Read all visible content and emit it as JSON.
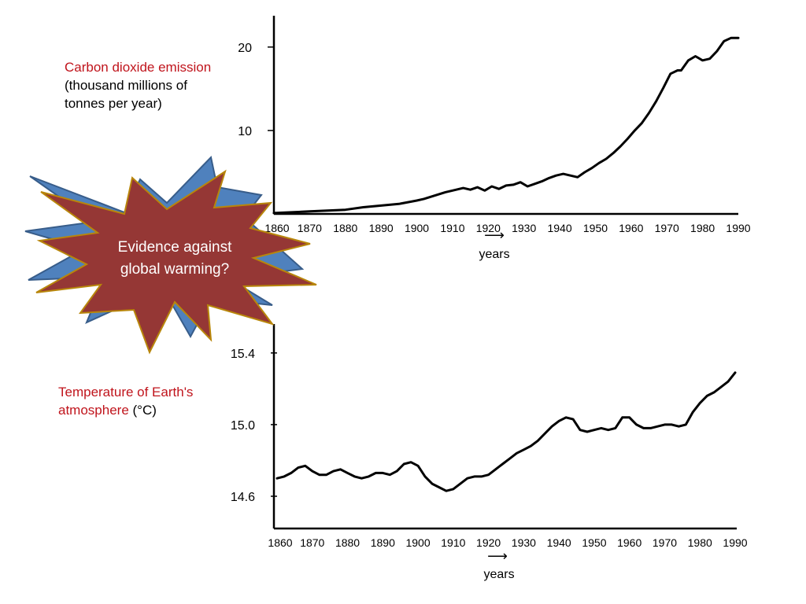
{
  "colors": {
    "label_red": "#c0141c",
    "line": "#000000",
    "burst_back_fill": "#4f81bd",
    "burst_back_stroke": "#385d8a",
    "burst_front_fill": "#953735",
    "burst_front_stroke": "#b8860b",
    "burst_text": "#ffffff"
  },
  "callout": {
    "shape": "explosion-burst",
    "line1": "Evidence against",
    "line2": "global warming?"
  },
  "chart_data": [
    {
      "type": "line",
      "title": "",
      "label_red": "Carbon dioxide emission",
      "label_black_1": "(thousand millions of",
      "label_black_2": "tonnes per year)",
      "xlabel": "years",
      "xlabel_arrow": "⟶",
      "xlim": [
        1860,
        1990
      ],
      "ylim": [
        0,
        23
      ],
      "x_ticks": [
        "1860",
        "1870",
        "1880",
        "1890",
        "1900",
        "1910",
        "1920",
        "1930",
        "1940",
        "1950",
        "1960",
        "1970",
        "1980",
        "1990"
      ],
      "y_ticks": [
        {
          "value": 10,
          "label": "10"
        },
        {
          "value": 20,
          "label": "20"
        }
      ],
      "grid": false,
      "series": [
        {
          "x": [
            1860,
            1865,
            1870,
            1875,
            1880,
            1885,
            1890,
            1895,
            1900,
            1902,
            1905,
            1908,
            1910,
            1913,
            1915,
            1917,
            1919,
            1921,
            1923,
            1925,
            1927,
            1929,
            1931,
            1933,
            1935,
            1937,
            1939,
            1941,
            1943,
            1945,
            1947,
            1949,
            1951,
            1953,
            1955,
            1957,
            1959,
            1961,
            1963,
            1965,
            1967,
            1969,
            1971,
            1973,
            1974,
            1976,
            1978,
            1980,
            1982,
            1984,
            1986,
            1988,
            1990
          ],
          "y": [
            0.1,
            0.2,
            0.3,
            0.4,
            0.5,
            0.8,
            1.0,
            1.2,
            1.6,
            1.8,
            2.2,
            2.6,
            2.8,
            3.1,
            2.9,
            3.2,
            2.8,
            3.3,
            3.0,
            3.4,
            3.5,
            3.8,
            3.3,
            3.6,
            3.9,
            4.3,
            4.6,
            4.8,
            4.6,
            4.4,
            5.0,
            5.5,
            6.1,
            6.6,
            7.3,
            8.1,
            9.0,
            10.0,
            10.9,
            12.1,
            13.5,
            15.1,
            16.8,
            17.2,
            17.2,
            18.4,
            18.9,
            18.4,
            18.6,
            19.5,
            20.7,
            21.1,
            21.1
          ]
        }
      ]
    },
    {
      "type": "line",
      "title": "",
      "label_red": "Temperature of Earth's",
      "label_red_2": "atmosphere",
      "label_black_unit": "(°C)",
      "xlabel": "years",
      "xlabel_arrow": "⟶",
      "xlim": [
        1860,
        1990
      ],
      "ylim": [
        14.42,
        15.5
      ],
      "x_ticks": [
        "1860",
        "1870",
        "1880",
        "1890",
        "1900",
        "1910",
        "1920",
        "1930",
        "1940",
        "1950",
        "1960",
        "1970",
        "1980",
        "1990"
      ],
      "y_ticks": [
        {
          "value": 14.6,
          "label": "14.6"
        },
        {
          "value": 15.0,
          "label": "15.0"
        },
        {
          "value": 15.4,
          "label": "15.4"
        }
      ],
      "grid": false,
      "series": [
        {
          "x": [
            1860,
            1862,
            1864,
            1866,
            1868,
            1870,
            1872,
            1874,
            1876,
            1878,
            1880,
            1882,
            1884,
            1886,
            1888,
            1890,
            1892,
            1894,
            1896,
            1898,
            1900,
            1902,
            1904,
            1906,
            1908,
            1910,
            1912,
            1914,
            1916,
            1918,
            1920,
            1922,
            1924,
            1926,
            1928,
            1930,
            1932,
            1934,
            1936,
            1938,
            1940,
            1942,
            1944,
            1946,
            1948,
            1950,
            1952,
            1954,
            1956,
            1958,
            1960,
            1962,
            1964,
            1966,
            1968,
            1970,
            1972,
            1974,
            1976,
            1978,
            1980,
            1982,
            1984,
            1986,
            1988,
            1990
          ],
          "y": [
            14.7,
            14.71,
            14.73,
            14.76,
            14.77,
            14.74,
            14.72,
            14.72,
            14.74,
            14.75,
            14.73,
            14.71,
            14.7,
            14.71,
            14.73,
            14.73,
            14.72,
            14.74,
            14.78,
            14.79,
            14.77,
            14.71,
            14.67,
            14.65,
            14.63,
            14.64,
            14.67,
            14.7,
            14.71,
            14.71,
            14.72,
            14.75,
            14.78,
            14.81,
            14.84,
            14.86,
            14.88,
            14.91,
            14.95,
            14.99,
            15.02,
            15.04,
            15.03,
            14.97,
            14.96,
            14.97,
            14.98,
            14.97,
            14.98,
            15.04,
            15.04,
            15.0,
            14.98,
            14.98,
            14.99,
            15.0,
            15.0,
            14.99,
            15.0,
            15.07,
            15.12,
            15.16,
            15.18,
            15.21,
            15.24,
            15.29
          ]
        }
      ]
    }
  ]
}
